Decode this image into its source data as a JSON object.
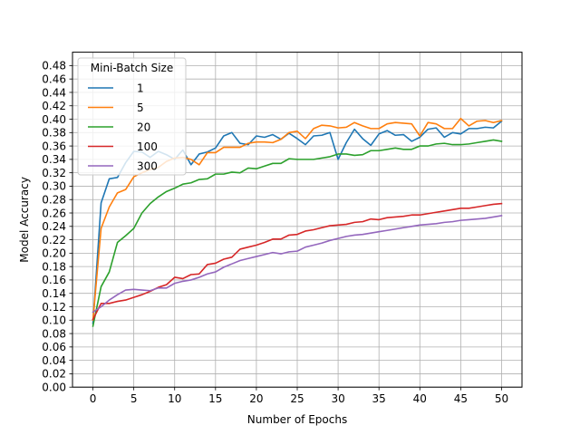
{
  "chart_data": {
    "type": "line",
    "title": "",
    "xlabel": "Number of Epochs",
    "ylabel": "Model Accuracy",
    "xlim": [
      -2.5,
      52.5
    ],
    "ylim": [
      0.0,
      0.5
    ],
    "xticks": [
      0,
      5,
      10,
      15,
      20,
      25,
      30,
      35,
      40,
      45,
      50
    ],
    "yticks": [
      0.0,
      0.02,
      0.04,
      0.06,
      0.08,
      0.1,
      0.12,
      0.14,
      0.16,
      0.18,
      0.2,
      0.22,
      0.24,
      0.26,
      0.28,
      0.3,
      0.32,
      0.34,
      0.36,
      0.38,
      0.4,
      0.42,
      0.44,
      0.46,
      0.48
    ],
    "grid": true,
    "legend": {
      "title": "Mini-Batch Size",
      "location": "upper-left"
    },
    "x": [
      0,
      1,
      2,
      3,
      4,
      5,
      6,
      7,
      8,
      9,
      10,
      11,
      12,
      13,
      14,
      15,
      16,
      17,
      18,
      19,
      20,
      21,
      22,
      23,
      24,
      25,
      26,
      27,
      28,
      29,
      30,
      31,
      32,
      33,
      34,
      35,
      36,
      37,
      38,
      39,
      40,
      41,
      42,
      43,
      44,
      45,
      46,
      47,
      48,
      49,
      50
    ],
    "series": [
      {
        "name": "1",
        "color": "#1f77b4",
        "values": [
          0.095,
          0.275,
          0.311,
          0.313,
          0.335,
          0.352,
          0.351,
          0.343,
          0.352,
          0.347,
          0.34,
          0.354,
          0.332,
          0.348,
          0.351,
          0.357,
          0.375,
          0.38,
          0.364,
          0.362,
          0.375,
          0.373,
          0.377,
          0.37,
          0.379,
          0.371,
          0.362,
          0.375,
          0.376,
          0.38,
          0.34,
          0.365,
          0.385,
          0.371,
          0.361,
          0.378,
          0.383,
          0.376,
          0.377,
          0.367,
          0.373,
          0.385,
          0.387,
          0.373,
          0.38,
          0.378,
          0.386,
          0.386,
          0.388,
          0.387,
          0.397
        ]
      },
      {
        "name": "5",
        "color": "#ff7f0e",
        "values": [
          0.1,
          0.237,
          0.269,
          0.29,
          0.295,
          0.314,
          0.32,
          0.325,
          0.328,
          0.337,
          0.342,
          0.343,
          0.34,
          0.332,
          0.35,
          0.35,
          0.358,
          0.358,
          0.358,
          0.364,
          0.366,
          0.366,
          0.365,
          0.37,
          0.38,
          0.382,
          0.371,
          0.386,
          0.391,
          0.39,
          0.387,
          0.388,
          0.395,
          0.39,
          0.386,
          0.386,
          0.393,
          0.395,
          0.394,
          0.393,
          0.375,
          0.395,
          0.393,
          0.386,
          0.386,
          0.401,
          0.39,
          0.397,
          0.398,
          0.395,
          0.398
        ]
      },
      {
        "name": "20",
        "color": "#2ca02c",
        "values": [
          0.091,
          0.15,
          0.172,
          0.216,
          0.226,
          0.237,
          0.26,
          0.274,
          0.284,
          0.292,
          0.297,
          0.303,
          0.305,
          0.31,
          0.311,
          0.318,
          0.318,
          0.321,
          0.32,
          0.327,
          0.326,
          0.33,
          0.334,
          0.334,
          0.341,
          0.34,
          0.34,
          0.34,
          0.342,
          0.344,
          0.348,
          0.348,
          0.346,
          0.347,
          0.353,
          0.353,
          0.355,
          0.357,
          0.355,
          0.355,
          0.36,
          0.36,
          0.363,
          0.364,
          0.362,
          0.362,
          0.363,
          0.365,
          0.367,
          0.369,
          0.367
        ]
      },
      {
        "name": "100",
        "color": "#d62728",
        "values": [
          0.101,
          0.125,
          0.125,
          0.128,
          0.13,
          0.134,
          0.138,
          0.143,
          0.149,
          0.153,
          0.164,
          0.162,
          0.168,
          0.169,
          0.183,
          0.185,
          0.191,
          0.194,
          0.206,
          0.209,
          0.212,
          0.216,
          0.221,
          0.221,
          0.227,
          0.228,
          0.233,
          0.235,
          0.238,
          0.241,
          0.242,
          0.243,
          0.246,
          0.247,
          0.251,
          0.25,
          0.253,
          0.254,
          0.255,
          0.257,
          0.257,
          0.259,
          0.261,
          0.263,
          0.265,
          0.267,
          0.267,
          0.269,
          0.271,
          0.273,
          0.274
        ]
      },
      {
        "name": "300",
        "color": "#9467bd",
        "values": [
          0.112,
          0.12,
          0.13,
          0.138,
          0.145,
          0.146,
          0.145,
          0.144,
          0.148,
          0.148,
          0.155,
          0.158,
          0.16,
          0.164,
          0.169,
          0.172,
          0.179,
          0.184,
          0.189,
          0.192,
          0.195,
          0.198,
          0.201,
          0.199,
          0.202,
          0.203,
          0.209,
          0.212,
          0.215,
          0.219,
          0.222,
          0.225,
          0.227,
          0.228,
          0.23,
          0.232,
          0.234,
          0.236,
          0.238,
          0.24,
          0.242,
          0.243,
          0.244,
          0.246,
          0.247,
          0.249,
          0.25,
          0.251,
          0.252,
          0.254,
          0.256
        ]
      }
    ]
  }
}
